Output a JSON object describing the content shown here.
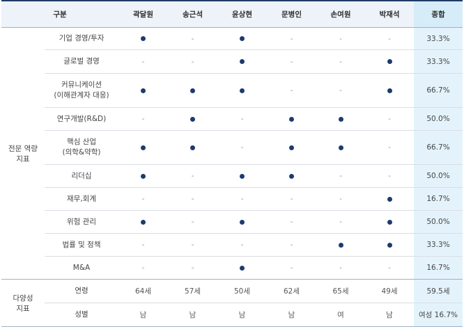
{
  "header": {
    "category_label": "구분",
    "directors": [
      "곽달원",
      "송근석",
      "윤상현",
      "문병인",
      "손여원",
      "박재석"
    ],
    "total_label": "종합"
  },
  "groups": [
    {
      "label": "전문 역량\n지표",
      "rows": [
        {
          "label": "기업 경영/투자",
          "marks": [
            1,
            0,
            1,
            0,
            0,
            0
          ],
          "total": "33.3%"
        },
        {
          "label": "글로벌 경영",
          "marks": [
            0,
            0,
            1,
            0,
            0,
            1
          ],
          "total": "33.3%"
        },
        {
          "label": "커뮤니케이션\n(이해관계자 대응)",
          "marks": [
            1,
            1,
            1,
            0,
            0,
            1
          ],
          "total": "66.7%"
        },
        {
          "label": "연구개발(R&D)",
          "marks": [
            0,
            1,
            0,
            1,
            1,
            0
          ],
          "total": "50.0%"
        },
        {
          "label": "핵심 산업\n(의학&약학)",
          "marks": [
            1,
            1,
            0,
            1,
            1,
            0
          ],
          "total": "66.7%"
        },
        {
          "label": "리더십",
          "marks": [
            1,
            0,
            1,
            1,
            0,
            0
          ],
          "total": "50.0%"
        },
        {
          "label": "재무,회계",
          "marks": [
            0,
            0,
            0,
            0,
            0,
            1
          ],
          "total": "16.7%"
        },
        {
          "label": "위험 관리",
          "marks": [
            1,
            0,
            1,
            0,
            0,
            1
          ],
          "total": "50.0%"
        },
        {
          "label": "법률 및 정책",
          "marks": [
            0,
            0,
            0,
            0,
            1,
            1
          ],
          "total": "33.3%"
        },
        {
          "label": "M&A",
          "marks": [
            0,
            0,
            1,
            0,
            0,
            0
          ],
          "total": "16.7%"
        }
      ]
    },
    {
      "label": "다양성\n지표",
      "rows": [
        {
          "label": "연령",
          "values": [
            "64세",
            "57세",
            "50세",
            "62세",
            "65세",
            "49세"
          ],
          "total": "59.5세"
        },
        {
          "label": "성별",
          "values": [
            "남",
            "남",
            "남",
            "남",
            "여",
            "남"
          ],
          "total": "여성 16.7%"
        }
      ]
    }
  ],
  "symbols": {
    "dash": "-"
  },
  "colors": {
    "dot": "#1e3a6e",
    "header_bg": "#eef3f9",
    "total_header_bg": "#d6ecf8",
    "total_cell_bg": "#e4f3fb"
  }
}
